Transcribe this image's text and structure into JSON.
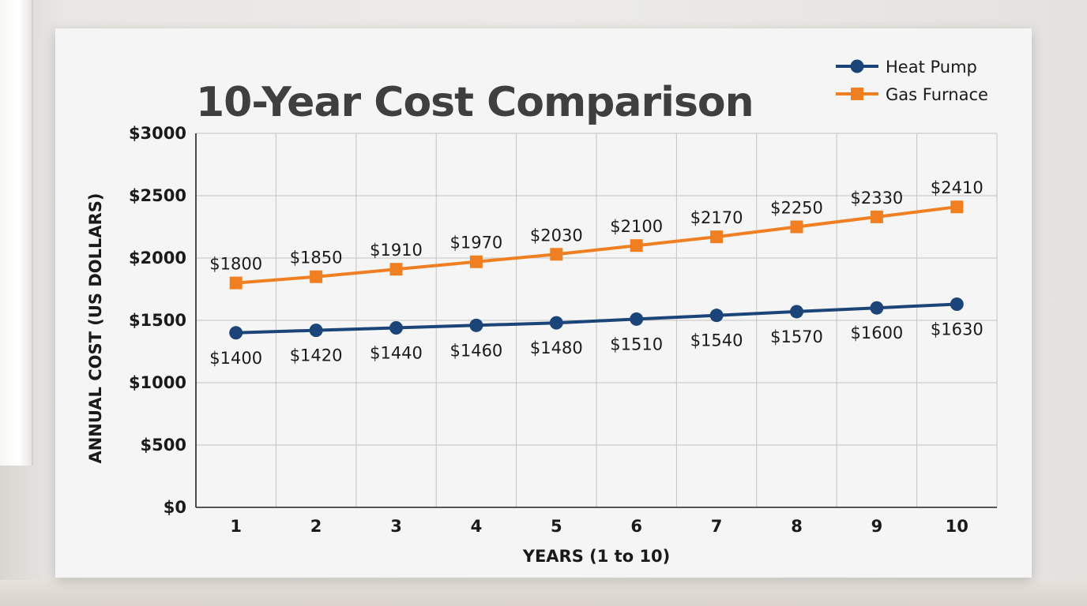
{
  "chart_data": {
    "type": "line",
    "title": "10-Year Cost Comparison",
    "xlabel": "YEARS (1 to 10)",
    "ylabel": "ANNUAL COST (US DOLLARS)",
    "categories": [
      "1",
      "2",
      "3",
      "4",
      "5",
      "6",
      "7",
      "8",
      "9",
      "10"
    ],
    "ylim": [
      0,
      3000
    ],
    "yticks": [
      "$0",
      "$500",
      "$1000",
      "$1500",
      "$2000",
      "$2500",
      "$3000"
    ],
    "grid": true,
    "legend_position": "top-right",
    "series": [
      {
        "name": "Heat Pump",
        "color": "#1b4479",
        "marker": "circle",
        "label_position": "below",
        "values": [
          1400,
          1420,
          1440,
          1460,
          1480,
          1510,
          1540,
          1570,
          1600,
          1630
        ],
        "labels": [
          "$1400",
          "$1420",
          "$1440",
          "$1460",
          "$1480",
          "$1510",
          "$1540",
          "$1570",
          "$1600",
          "$1630"
        ]
      },
      {
        "name": "Gas Furnace",
        "color": "#f07f22",
        "marker": "square",
        "label_position": "above",
        "values": [
          1800,
          1850,
          1910,
          1970,
          2030,
          2100,
          2170,
          2250,
          2330,
          2410
        ],
        "labels": [
          "$1800",
          "$1850",
          "$1910",
          "$1970",
          "$2030",
          "$2100",
          "$2170",
          "$2250",
          "$2330",
          "$2410"
        ]
      }
    ]
  }
}
